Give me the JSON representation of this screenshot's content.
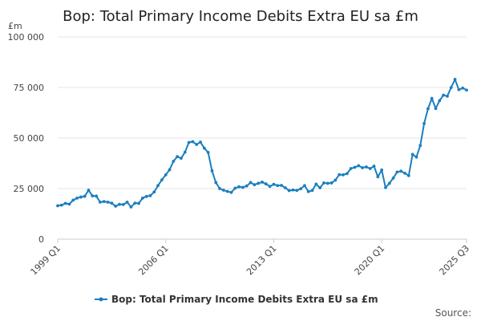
{
  "chart_data": {
    "type": "line",
    "title": "Bop: Total Primary Income Debits Extra EU sa £m",
    "ylabel": "£m",
    "xlabel": "",
    "ylim": [
      0,
      100000
    ],
    "yticks": [
      0,
      25000,
      50000,
      75000,
      100000
    ],
    "ytick_labels": [
      "0",
      "25 000",
      "50 000",
      "75 000",
      "100 000"
    ],
    "xtick_labels": [
      "1999 Q1",
      "2006 Q1",
      "2013 Q1",
      "2020 Q1",
      "2025 Q3"
    ],
    "xtick_indices": [
      0,
      28,
      56,
      84,
      106
    ],
    "grid": true,
    "legend_position": "bottom",
    "source_label": "Source:",
    "series": [
      {
        "name": "Bop: Total Primary Income Debits Extra EU sa £m",
        "color": "#1a7fbf",
        "values": [
          16500,
          16800,
          17700,
          17300,
          19300,
          20300,
          20800,
          21200,
          24200,
          21400,
          21300,
          18300,
          18600,
          18300,
          17800,
          16300,
          17200,
          17100,
          18300,
          15900,
          17800,
          17700,
          20300,
          21100,
          21500,
          23300,
          26500,
          29300,
          31800,
          34300,
          38500,
          40800,
          40000,
          43000,
          47800,
          48200,
          46800,
          48000,
          45000,
          42900,
          33800,
          28000,
          25000,
          24200,
          23600,
          23100,
          25200,
          25900,
          25600,
          26300,
          28000,
          26900,
          27600,
          28200,
          27300,
          26100,
          27100,
          26500,
          26600,
          25400,
          24000,
          24300,
          24100,
          24900,
          26500,
          23500,
          24100,
          27200,
          25400,
          27800,
          27600,
          27800,
          29200,
          31900,
          31800,
          32400,
          34900,
          35500,
          36300,
          35300,
          35700,
          34900,
          36100,
          30800,
          34200,
          25500,
          27600,
          30200,
          33200,
          33600,
          32600,
          31400,
          41900,
          40600,
          46300,
          57200,
          64500,
          69600,
          64600,
          68500,
          71200,
          70700,
          75000,
          79000,
          73900,
          74700,
          73700
        ]
      }
    ]
  }
}
